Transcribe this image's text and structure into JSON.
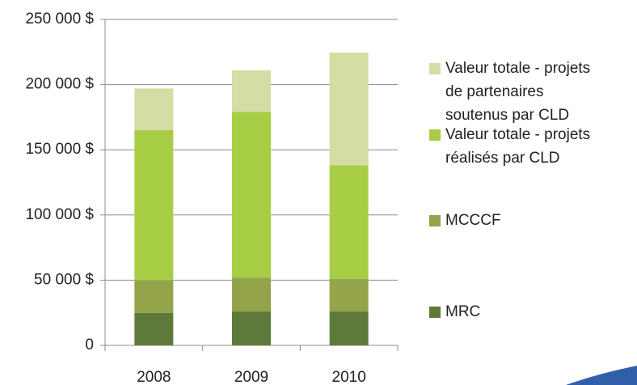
{
  "chart_data": {
    "type": "bar",
    "stacked": true,
    "categories": [
      "2008",
      "2009",
      "2010"
    ],
    "series": [
      {
        "name": "MRC",
        "color": "#5e7a3a",
        "values": [
          25000,
          26000,
          26000
        ]
      },
      {
        "name": "MCCCF",
        "color": "#93a44a",
        "values": [
          25000,
          26000,
          25000
        ]
      },
      {
        "name": "Valeur totale  - projets réalisés par CLD",
        "color": "#a7cd45",
        "values": [
          115000,
          127000,
          87000
        ]
      },
      {
        "name": "Valeur totale - projets de partenaires soutenus par CLD",
        "color": "#d5dca4",
        "values": [
          32000,
          32000,
          86500
        ]
      }
    ],
    "ylim": [
      0,
      250000
    ],
    "yticks": [
      0,
      {
        "value": 50000,
        "label": "50 000 $"
      },
      {
        "value": 100000,
        "label": "100 000 $"
      },
      {
        "value": 150000,
        "label": "150 000 $"
      },
      {
        "value": 200000,
        "label": "200 000 $"
      },
      {
        "value": 250000,
        "label": "250 000 $"
      }
    ],
    "grid": true,
    "legend": "right"
  }
}
